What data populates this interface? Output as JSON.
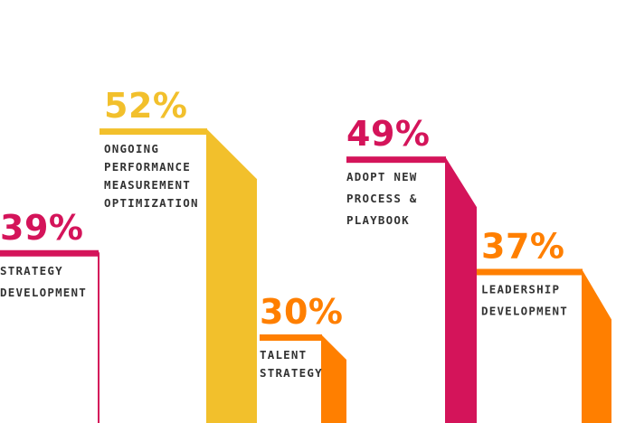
{
  "chart_data": {
    "type": "bar",
    "style": "3d-stepped-columns",
    "bars": [
      {
        "value": 39,
        "value_label": "39%",
        "label_lines": [
          "STRATEGY",
          "DEVELOPMENT"
        ],
        "color": "#D4145A"
      },
      {
        "value": 52,
        "value_label": "52%",
        "label_lines": [
          "ONGOING",
          "PERFORMANCE",
          "MEASUREMENT",
          "OPTIMIZATION"
        ],
        "color": "#F2C02C"
      },
      {
        "value": 30,
        "value_label": "30%",
        "label_lines": [
          "TALENT",
          "STRATEGY"
        ],
        "color": "#FF7F00"
      },
      {
        "value": 49,
        "value_label": "49%",
        "label_lines": [
          "ADOPT NEW",
          "PROCESS &",
          "PLAYBOOK"
        ],
        "color": "#D4145A"
      },
      {
        "value": 37,
        "value_label": "37%",
        "label_lines": [
          "LEADERSHIP",
          "DEVELOPMENT"
        ],
        "color": "#FF7F00"
      }
    ]
  }
}
